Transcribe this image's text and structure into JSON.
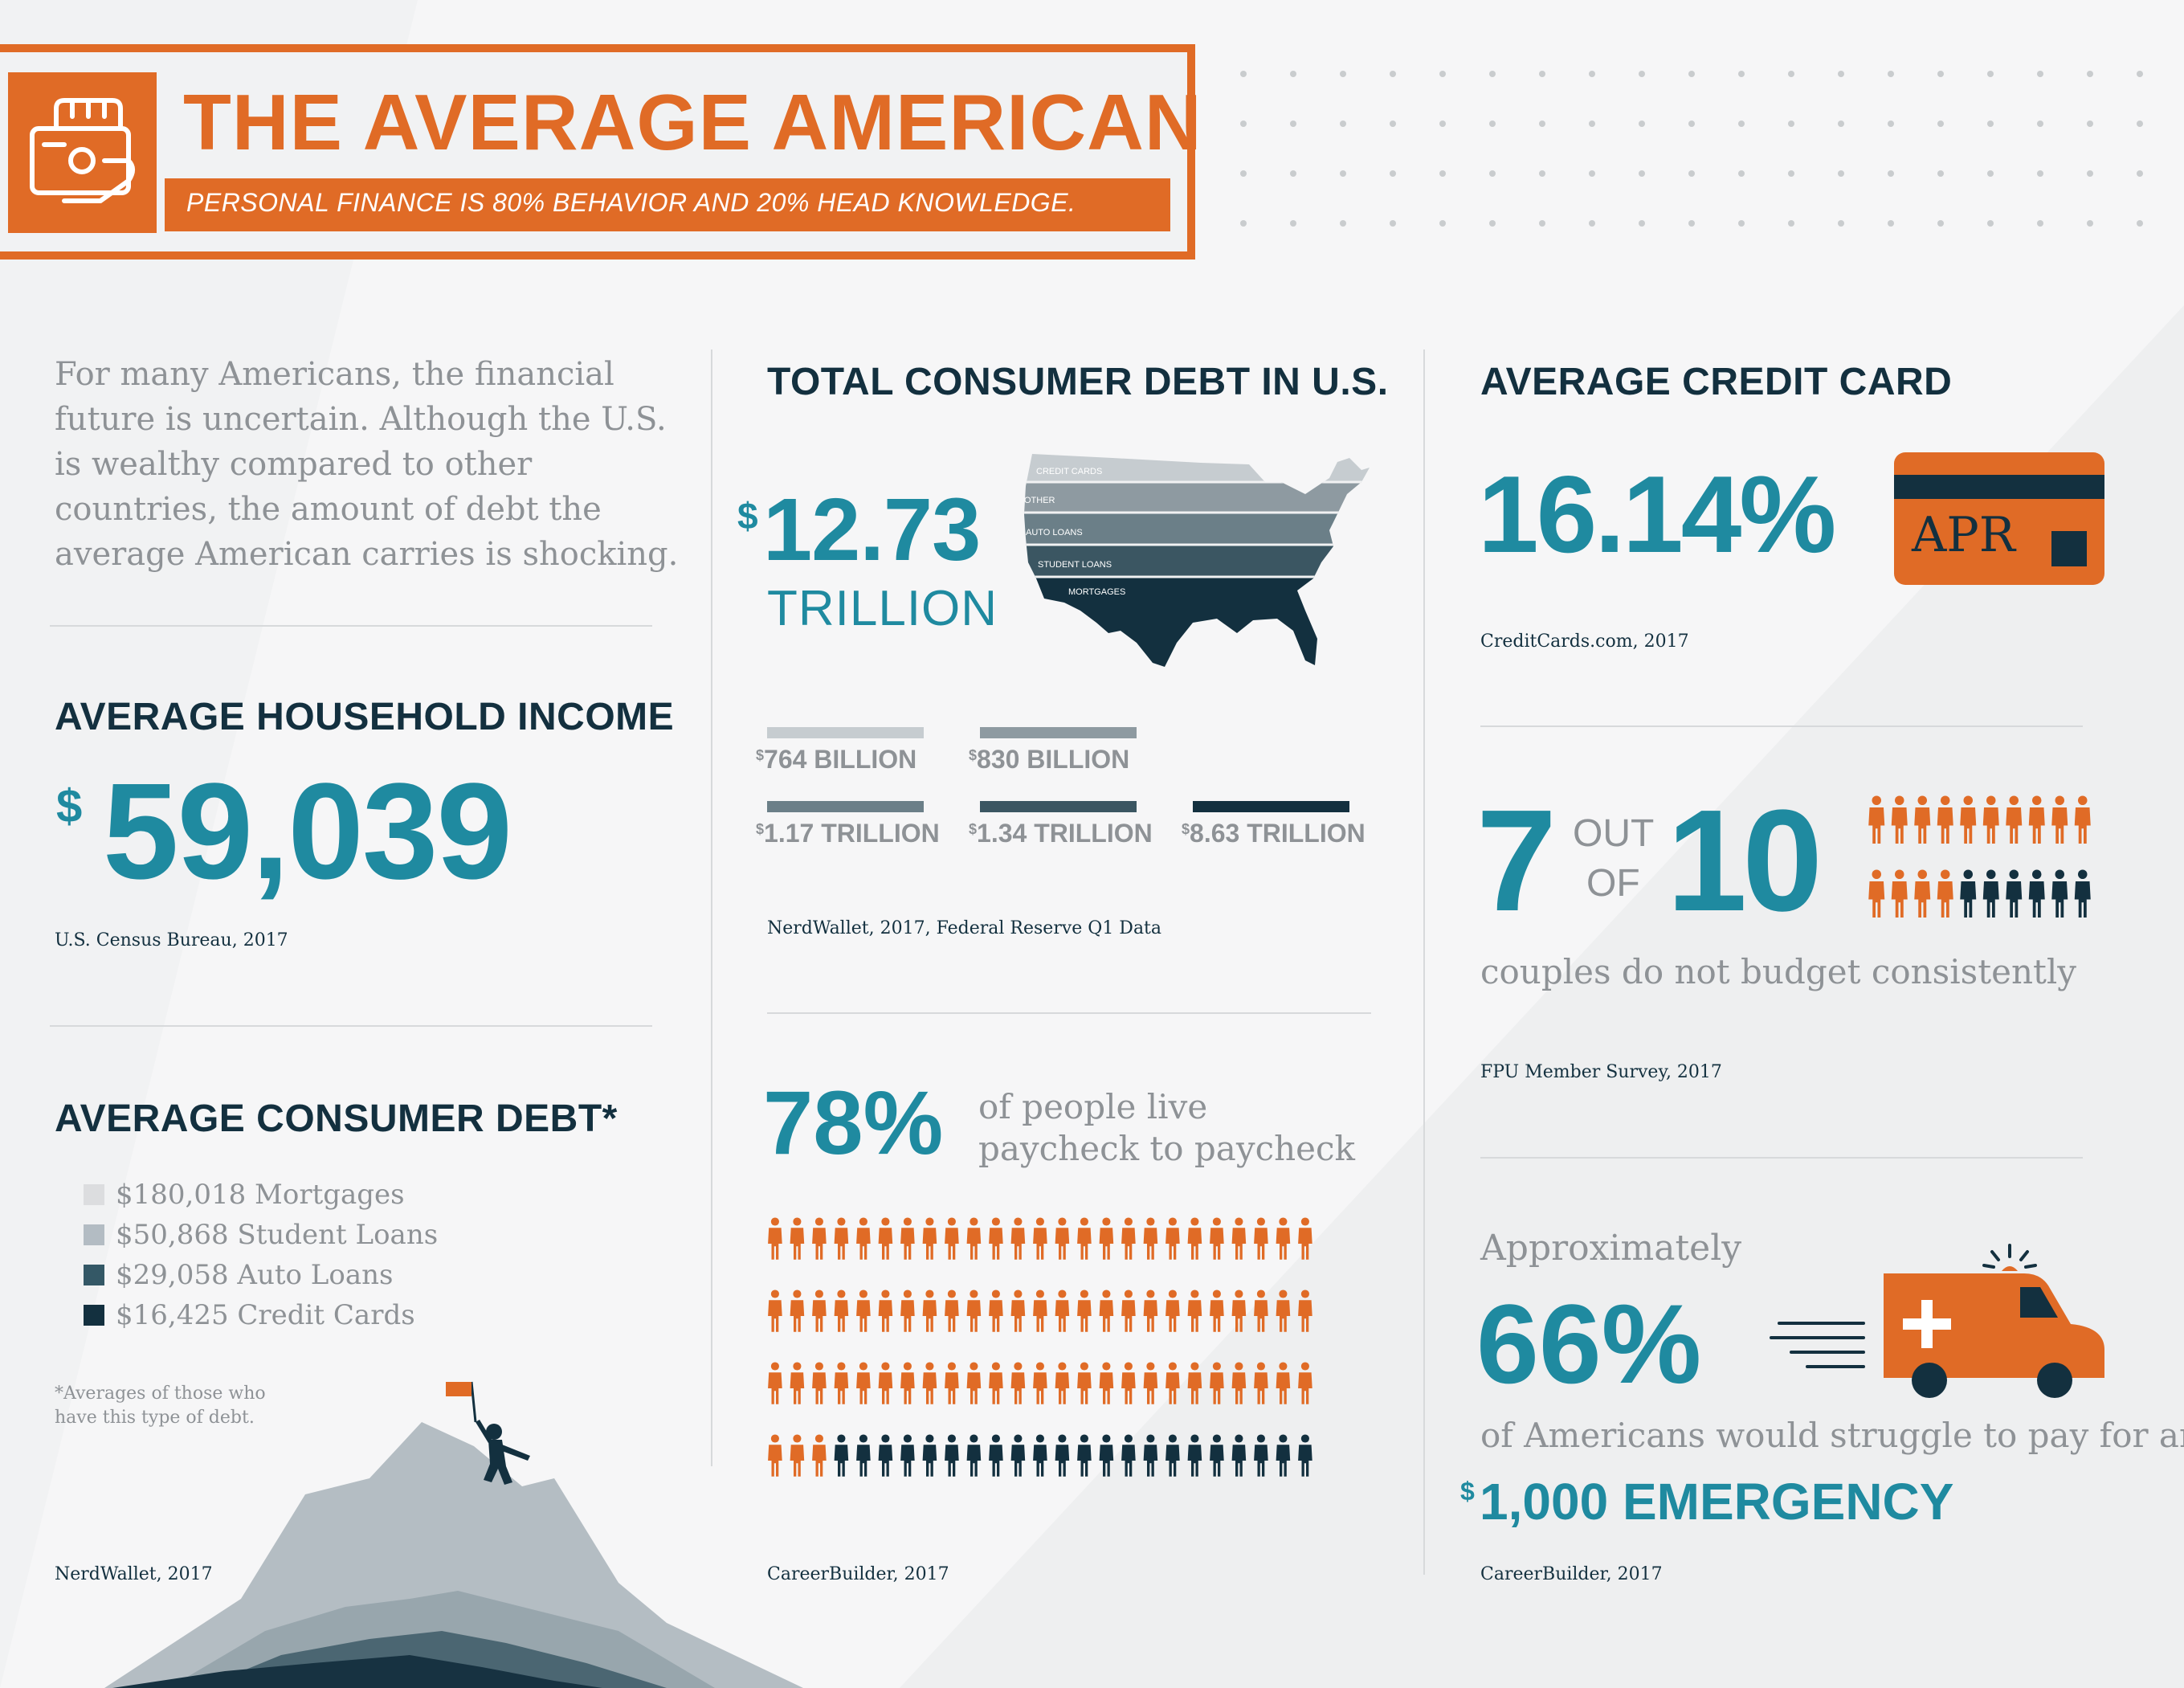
{
  "header": {
    "title": "THE AVERAGE AMERICAN",
    "subtitle": "PERSONAL FINANCE IS 80% BEHAVIOR AND 20% HEAD KNOWLEDGE."
  },
  "intro": {
    "text": "For many Americans, the financial future is uncertain. Although the U.S. is wealthy compared to other countries, the amount of debt the average American carries is shocking."
  },
  "household_income": {
    "title": "AVERAGE HOUSEHOLD INCOME",
    "currency": "$",
    "value": "59,039",
    "source": "U.S. Census Bureau, 2017"
  },
  "consumer_debt": {
    "title": "AVERAGE CONSUMER DEBT*",
    "items": [
      {
        "label": "$180,018 Mortgages",
        "color": "#dcdddf"
      },
      {
        "label": "$50,868 Student Loans",
        "color": "#b3bcc3"
      },
      {
        "label": "$29,058 Auto Loans",
        "color": "#345866"
      },
      {
        "label": "$16,425 Credit Cards",
        "color": "#13303f"
      }
    ],
    "footnote_line1": "*Averages of those who",
    "footnote_line2": "have this type of debt.",
    "source": "NerdWallet, 2017"
  },
  "total_debt": {
    "title": "TOTAL CONSUMER DEBT IN U.S.",
    "currency": "$",
    "value": "12.73",
    "unit": "TRILLION",
    "map_labels": [
      "CREDIT CARDS",
      "OTHER",
      "AUTO LOANS",
      "STUDENT LOANS",
      "MORTGAGES"
    ],
    "bars": [
      {
        "currency": "$",
        "label": "764 BILLION",
        "color": "#c6ccd0"
      },
      {
        "currency": "$",
        "label": "830 BILLION",
        "color": "#8e9aa1"
      },
      {
        "currency": "$",
        "label": "1.17 TRILLION",
        "color": "#6b7f88"
      },
      {
        "currency": "$",
        "label": "1.34 TRILLION",
        "color": "#3b5662"
      },
      {
        "currency": "$",
        "label": "8.63 TRILLION",
        "color": "#13303f"
      }
    ],
    "source": "NerdWallet, 2017, Federal Reserve Q1 Data"
  },
  "paycheck": {
    "value": "78%",
    "text_line1": "of people live",
    "text_line2": "paycheck to paycheck",
    "filled": 78,
    "total": 100,
    "source": "CareerBuilder, 2017"
  },
  "credit_card": {
    "title": "AVERAGE CREDIT CARD",
    "value": "16.14%",
    "card_label": "APR",
    "source": "CreditCards.com, 2017"
  },
  "budget": {
    "num": "7",
    "out": "OUT",
    "of": "OF",
    "den": "10",
    "filled": 14,
    "total": 20,
    "text": "couples do not budget consistently",
    "source": "FPU Member Survey, 2017"
  },
  "emergency": {
    "pre": "Approximately",
    "value": "66%",
    "text": "of Americans would struggle to pay for an",
    "currency": "$",
    "amount": "1,000 EMERGENCY",
    "source": "CareerBuilder, 2017"
  },
  "colors": {
    "orange": "#e06b26",
    "teal": "#1f8aa0",
    "navy": "#13303f",
    "grey": "#8e9296"
  }
}
